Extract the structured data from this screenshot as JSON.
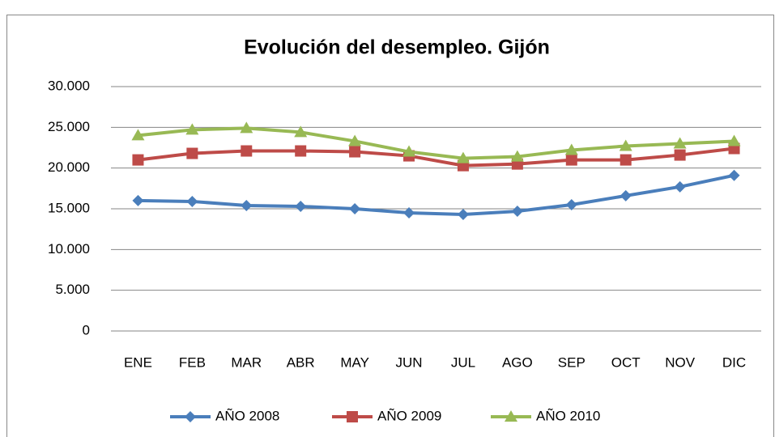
{
  "chart_data": {
    "type": "line",
    "title": "Evolución del desempleo. Gijón",
    "categories": [
      "ENE",
      "FEB",
      "MAR",
      "ABR",
      "MAY",
      "JUN",
      "JUL",
      "AGO",
      "SEP",
      "OCT",
      "NOV",
      "DIC"
    ],
    "series": [
      {
        "name": "AÑO 2008",
        "color": "#4a7ebb",
        "marker": "diamond",
        "values": [
          16000,
          15900,
          15400,
          15300,
          15000,
          14500,
          14300,
          14700,
          15500,
          16600,
          17700,
          19100
        ]
      },
      {
        "name": "AÑO 2009",
        "color": "#be4b48",
        "marker": "square",
        "values": [
          21000,
          21800,
          22100,
          22100,
          22000,
          21500,
          20300,
          20500,
          21000,
          21000,
          21600,
          22400
        ]
      },
      {
        "name": "AÑO 2010",
        "color": "#98b954",
        "marker": "triangle",
        "values": [
          24000,
          24700,
          24900,
          24400,
          23300,
          22000,
          21200,
          21400,
          22200,
          22700,
          23000,
          23300
        ]
      }
    ],
    "ylim": [
      0,
      30000
    ],
    "yticks": [
      0,
      {
        "value": 5000,
        "label": "5.000"
      },
      {
        "value": 10000,
        "label": "10.000"
      },
      {
        "value": 15000,
        "label": "15.000"
      },
      {
        "value": 20000,
        "label": "20.000"
      },
      {
        "value": 25000,
        "label": "25.000"
      },
      {
        "value": 30000,
        "label": "30.000"
      }
    ],
    "grid": true,
    "legend": "bottom"
  }
}
